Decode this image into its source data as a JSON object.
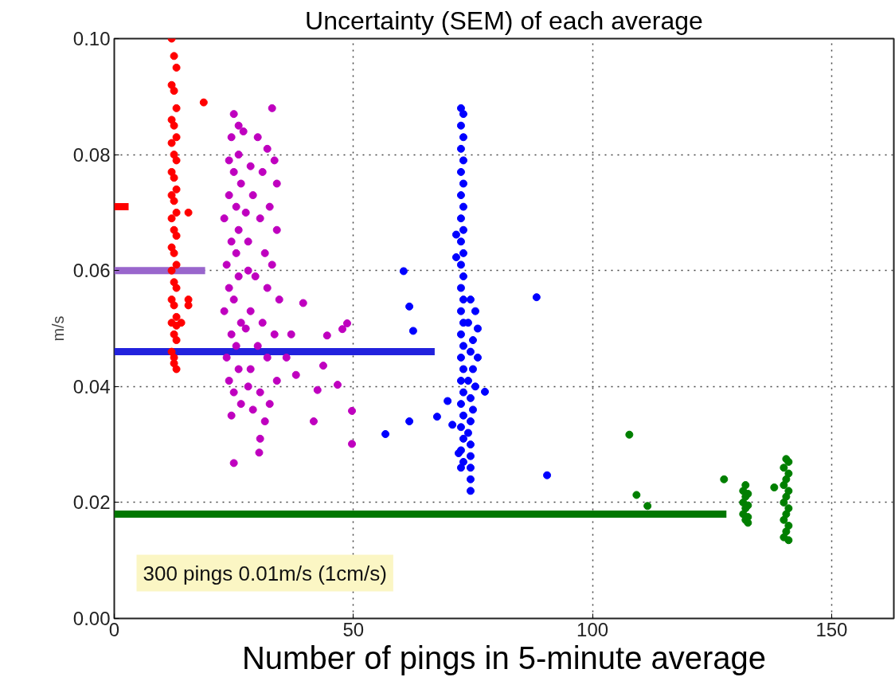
{
  "chart_data": {
    "type": "scatter",
    "title": "Uncertainty (SEM) of each average",
    "xlabel": "Number of pings in 5-minute average",
    "ylabel": "m/s",
    "xlim": [
      0,
      163
    ],
    "ylim": [
      0,
      0.1
    ],
    "xticks": [
      0,
      50,
      100,
      150
    ],
    "yticks": [
      {
        "value": 0,
        "label": "0.00"
      },
      {
        "value": 0.02,
        "label": "0.02"
      },
      {
        "value": 0.04,
        "label": "0.04"
      },
      {
        "value": 0.06,
        "label": "0.06"
      },
      {
        "value": 0.08,
        "label": "0.08"
      },
      {
        "value": 0.1,
        "label": "0.10"
      }
    ],
    "grid": true,
    "series": [
      {
        "marker": "circle",
        "color": "#ff0000",
        "x": [
          12,
          12.5,
          13,
          12,
          12.5,
          13,
          12,
          12.5,
          13,
          12,
          12.5,
          13,
          12,
          12.5,
          13,
          12,
          12.5,
          13,
          12,
          12.5,
          13,
          12,
          12.5,
          13,
          12,
          12.5,
          13,
          12,
          12.5,
          13,
          12,
          12.5,
          13,
          12,
          12.5,
          13,
          18.7,
          15.5,
          15.5,
          15.5,
          14,
          12.5,
          13
        ],
        "values": [
          0.1,
          0.097,
          0.095,
          0.092,
          0.091,
          0.088,
          0.086,
          0.085,
          0.083,
          0.082,
          0.08,
          0.079,
          0.077,
          0.076,
          0.074,
          0.073,
          0.072,
          0.07,
          0.069,
          0.067,
          0.066,
          0.064,
          0.063,
          0.061,
          0.06,
          0.058,
          0.057,
          0.055,
          0.054,
          0.052,
          0.051,
          0.049,
          0.048,
          0.046,
          0.045,
          0.043,
          0.089,
          0.07,
          0.055,
          0.054,
          0.051,
          0.044,
          0.0505
        ]
      },
      {
        "marker": "circle",
        "color": "#bf00bf",
        "x": [
          25,
          26,
          24.5,
          27,
          26,
          24,
          25,
          26.5,
          24,
          25.5,
          23,
          26,
          24.5,
          25.5,
          23.5,
          26,
          24,
          25,
          23,
          26.5,
          24.5,
          25.5,
          23.5,
          26,
          24,
          25,
          26.5,
          24.5,
          25,
          33,
          30,
          32,
          33.5,
          31,
          34,
          29,
          32.5,
          30.5,
          34,
          28,
          31.5,
          33,
          29.5,
          32,
          34.5,
          28.5,
          31,
          33.5,
          30,
          32,
          28.5,
          34,
          30.5,
          32.5,
          29,
          31.5,
          30.5,
          30.3,
          27.5,
          28,
          27.5,
          28,
          28.5,
          39.5,
          44.5,
          48.7,
          47.7,
          43.7,
          46.7,
          49.7,
          49.7,
          42.5,
          41.7,
          37,
          36,
          38
        ],
        "values": [
          0.087,
          0.085,
          0.083,
          0.084,
          0.08,
          0.079,
          0.077,
          0.075,
          0.073,
          0.071,
          0.069,
          0.067,
          0.065,
          0.063,
          0.061,
          0.059,
          0.057,
          0.055,
          0.053,
          0.051,
          0.049,
          0.047,
          0.045,
          0.043,
          0.041,
          0.039,
          0.037,
          0.035,
          0.0268,
          0.088,
          0.083,
          0.081,
          0.079,
          0.077,
          0.075,
          0.073,
          0.071,
          0.069,
          0.067,
          0.065,
          0.063,
          0.061,
          0.059,
          0.057,
          0.055,
          0.053,
          0.051,
          0.049,
          0.047,
          0.045,
          0.043,
          0.041,
          0.039,
          0.037,
          0.036,
          0.034,
          0.031,
          0.0286,
          0.07,
          0.06,
          0.05,
          0.04,
          0.078,
          0.0544,
          0.0488,
          0.0509,
          0.0499,
          0.0436,
          0.0403,
          0.0358,
          0.0301,
          0.0394,
          0.034,
          0.049,
          0.045,
          0.042
        ]
      },
      {
        "marker": "circle",
        "color": "#0000ff",
        "x": [
          72.5,
          73,
          72.5,
          73,
          72.5,
          73,
          72.5,
          73,
          72.5,
          73,
          72.5,
          73,
          72.5,
          73,
          72.5,
          73,
          72.5,
          73,
          72.5,
          73,
          72.5,
          73,
          72.5,
          73,
          72.5,
          73,
          72.5,
          73,
          72.5,
          73,
          72.5,
          73,
          72.5,
          74.5,
          75.5,
          74,
          76,
          75,
          74.5,
          76,
          75,
          74,
          75.5,
          74.5,
          75,
          74.5,
          74,
          74.5,
          74.5,
          74.5,
          74.5,
          74.5,
          71.5,
          71.5,
          60.5,
          61.7,
          62.5,
          56.7,
          61.7,
          67.5,
          69.7,
          70.7,
          77.5,
          88.3,
          90.5,
          72
        ],
        "values": [
          0.088,
          0.087,
          0.085,
          0.083,
          0.081,
          0.079,
          0.077,
          0.075,
          0.073,
          0.071,
          0.069,
          0.067,
          0.065,
          0.063,
          0.061,
          0.059,
          0.057,
          0.055,
          0.053,
          0.051,
          0.049,
          0.047,
          0.045,
          0.043,
          0.041,
          0.039,
          0.037,
          0.035,
          0.033,
          0.031,
          0.029,
          0.027,
          0.026,
          0.055,
          0.053,
          0.051,
          0.05,
          0.048,
          0.046,
          0.045,
          0.043,
          0.041,
          0.04,
          0.038,
          0.036,
          0.034,
          0.032,
          0.03,
          0.028,
          0.026,
          0.024,
          0.022,
          0.0662,
          0.0623,
          0.0599,
          0.0538,
          0.0496,
          0.0318,
          0.034,
          0.0348,
          0.0375,
          0.0334,
          0.0391,
          0.0554,
          0.0247,
          0.0285
        ]
      },
      {
        "marker": "circle",
        "color": "#007f00",
        "x": [
          107.7,
          109.2,
          111.5,
          127.5,
          138,
          132,
          131.5,
          132.5,
          132,
          131.5,
          132.5,
          132,
          131.5,
          132.5,
          132,
          132.5,
          140.5,
          141,
          140,
          141,
          140.5,
          140,
          141,
          140.5,
          140,
          141,
          140.5,
          140,
          141,
          140.5,
          140,
          141
        ],
        "values": [
          0.0317,
          0.0213,
          0.0194,
          0.024,
          0.0226,
          0.023,
          0.022,
          0.0215,
          0.021,
          0.02,
          0.0195,
          0.019,
          0.018,
          0.0175,
          0.017,
          0.0165,
          0.0275,
          0.027,
          0.026,
          0.025,
          0.024,
          0.023,
          0.022,
          0.021,
          0.02,
          0.019,
          0.018,
          0.017,
          0.016,
          0.015,
          0.014,
          0.0135
        ]
      },
      {
        "type": "line",
        "color": "#ff0000",
        "x": [
          0,
          3
        ],
        "values": [
          0.071,
          0.071
        ]
      },
      {
        "type": "line",
        "color": "#9966cc",
        "x": [
          0,
          19
        ],
        "values": [
          0.06,
          0.06
        ]
      },
      {
        "type": "line",
        "color": "#2222dd",
        "x": [
          0,
          67
        ],
        "values": [
          0.046,
          0.046
        ]
      },
      {
        "type": "line",
        "color": "#007700",
        "x": [
          0,
          128
        ],
        "values": [
          0.018,
          0.018
        ]
      }
    ],
    "annotations": [
      "300 pings 0.01m/s (1cm/s)"
    ]
  }
}
